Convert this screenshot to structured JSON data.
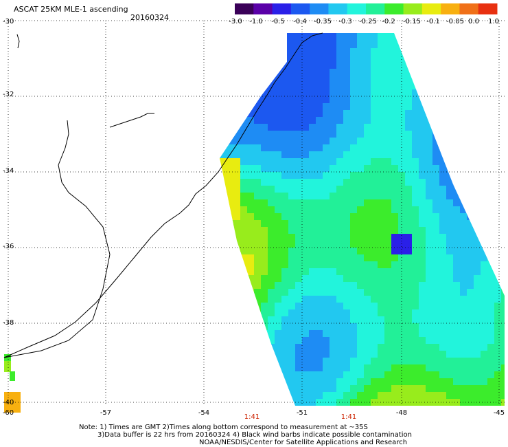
{
  "header": {
    "title": "ASCAT 25KM MLE-1 ascending",
    "date": "20160324"
  },
  "colorbar": {
    "labels": [
      "-3.0",
      "-1.0",
      "-0.5",
      "-0.4",
      "-0.35",
      "-0.3",
      "-0.25",
      "-0.2",
      "-0.15",
      "-0.1",
      "-0.05",
      "0.0",
      "1.0"
    ],
    "colors": [
      "#3a0058",
      "#5a00a8",
      "#2a20e8",
      "#1c58f0",
      "#1e8cf4",
      "#22c8f0",
      "#22f4dc",
      "#22f098",
      "#3cec2c",
      "#98ec1c",
      "#e8ec10",
      "#f8b010",
      "#f07018",
      "#e83010"
    ]
  },
  "axes": {
    "lat_labels": [
      "-30",
      "-32",
      "-34",
      "-36",
      "-38",
      "-40"
    ],
    "lon_labels": [
      "-60",
      "-57",
      "-54",
      "-51",
      "-48",
      "-45"
    ],
    "time_labels": [
      "1:41",
      "1:41"
    ]
  },
  "footer": {
    "note1": "Note: 1) Times are GMT 2)Times along bottom correspond to measurement at ~35S",
    "note2": "3)Data buffer is 22 hrs from 20160324 4) Black wind barbs indicate possible contamination",
    "credit": "NOAA/NESDIS/Center for Satellite Applications and Research"
  }
}
